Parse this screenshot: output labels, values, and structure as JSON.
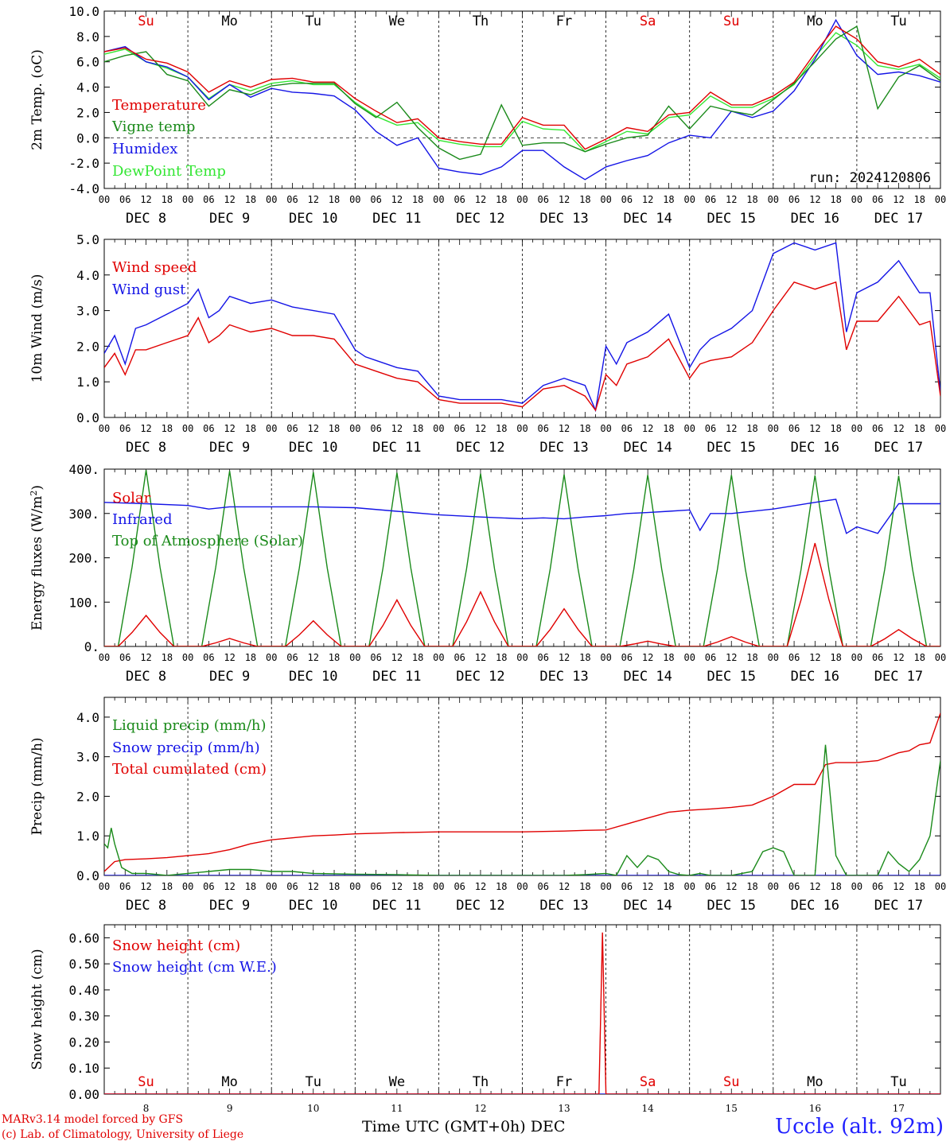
{
  "days": {
    "weekday": [
      "Su",
      "Mo",
      "Tu",
      "We",
      "Th",
      "Fr",
      "Sa",
      "Su",
      "Mo",
      "Tu"
    ],
    "weekday_color": [
      "#e00000",
      "#000000",
      "#000000",
      "#000000",
      "#000000",
      "#000000",
      "#e00000",
      "#e00000",
      "#000000",
      "#000000"
    ],
    "date_labels": [
      "DEC  8",
      "DEC  9",
      "DEC 10",
      "DEC 11",
      "DEC 12",
      "DEC 13",
      "DEC 14",
      "DEC 15",
      "DEC 16",
      "DEC 17"
    ],
    "day_numbers": [
      "8",
      "9",
      "10",
      "11",
      "12",
      "13",
      "14",
      "15",
      "16",
      "17"
    ],
    "hour_ticks": [
      "00",
      "06",
      "12",
      "18"
    ],
    "final_hour": "00"
  },
  "footer": {
    "credit1": "MARv3.14 model forced by GFS",
    "credit2": "(c) Lab. of Climatology, University of Liege",
    "xtitle": "Time UTC (GMT+0h) DEC",
    "station": "Uccle (alt. 92m)"
  },
  "chart_data": [
    {
      "type": "line",
      "ylabel": "2m Temp. (oC)",
      "ylim": [
        -4,
        10
      ],
      "yticks": [
        "-4.0",
        "-2.0",
        "0.0",
        "2.0",
        "4.0",
        "6.0",
        "8.0",
        "10.0"
      ],
      "run_label": "run: 2024120806",
      "zero_line": true,
      "x_unit": "hours since DEC 8 00 UTC",
      "xlim": [
        0,
        240
      ],
      "series": [
        {
          "name": "Temperature",
          "color": "#e00000",
          "x": [
            0,
            6,
            12,
            18,
            24,
            30,
            36,
            42,
            48,
            54,
            60,
            66,
            72,
            78,
            84,
            90,
            96,
            102,
            108,
            114,
            120,
            126,
            132,
            138,
            144,
            150,
            156,
            162,
            168,
            174,
            180,
            186,
            192,
            198,
            204,
            210,
            216,
            222,
            228,
            234,
            240
          ],
          "y": [
            6.8,
            7.1,
            6.2,
            5.9,
            5.2,
            3.6,
            4.5,
            4.0,
            4.6,
            4.7,
            4.4,
            4.4,
            3.1,
            2.1,
            1.2,
            1.5,
            0.0,
            -0.3,
            -0.5,
            -0.5,
            1.6,
            1.0,
            1.0,
            -0.9,
            -0.1,
            0.8,
            0.5,
            1.8,
            2.0,
            3.6,
            2.6,
            2.6,
            3.3,
            4.4,
            6.7,
            8.8,
            7.8,
            6.0,
            5.6,
            6.2,
            5.0
          ]
        },
        {
          "name": "Vigne temp",
          "color": "#1a8a1a",
          "x": [
            0,
            6,
            12,
            18,
            24,
            30,
            36,
            42,
            48,
            54,
            60,
            66,
            72,
            78,
            84,
            90,
            96,
            102,
            108,
            114,
            120,
            126,
            132,
            138,
            144,
            150,
            156,
            162,
            168,
            174,
            180,
            186,
            192,
            198,
            204,
            210,
            216,
            222,
            228,
            234,
            240
          ],
          "y": [
            6.0,
            6.5,
            6.8,
            5.0,
            4.5,
            2.5,
            3.8,
            3.4,
            4.1,
            4.3,
            4.3,
            4.3,
            2.7,
            1.6,
            2.8,
            0.8,
            -0.8,
            -1.7,
            -1.3,
            2.6,
            -0.6,
            -0.4,
            -0.4,
            -1.1,
            -0.5,
            0.0,
            0.2,
            2.5,
            0.7,
            2.5,
            2.1,
            1.8,
            3.0,
            4.3,
            6.0,
            7.8,
            8.8,
            2.3,
            4.8,
            5.7,
            4.5
          ]
        },
        {
          "name": "Humidex",
          "color": "#1414e6",
          "x": [
            0,
            6,
            12,
            18,
            24,
            30,
            36,
            42,
            48,
            54,
            60,
            66,
            72,
            78,
            84,
            90,
            96,
            102,
            108,
            114,
            120,
            126,
            132,
            138,
            144,
            150,
            156,
            162,
            168,
            174,
            180,
            186,
            192,
            198,
            204,
            210,
            216,
            222,
            228,
            234,
            240
          ],
          "y": [
            6.8,
            7.2,
            6.0,
            5.6,
            4.8,
            3.0,
            4.2,
            3.2,
            3.9,
            3.6,
            3.5,
            3.3,
            2.2,
            0.5,
            -0.6,
            0.0,
            -2.4,
            -2.7,
            -2.9,
            -2.3,
            -1.0,
            -1.0,
            -2.3,
            -3.3,
            -2.3,
            -1.8,
            -1.4,
            -0.4,
            0.2,
            0.0,
            2.1,
            1.6,
            2.1,
            3.7,
            6.2,
            9.3,
            6.5,
            5.0,
            5.2,
            4.9,
            4.4
          ]
        },
        {
          "name": "DewPoint Temp",
          "color": "#33e633",
          "x": [
            0,
            6,
            12,
            18,
            24,
            30,
            36,
            42,
            48,
            54,
            60,
            66,
            72,
            78,
            84,
            90,
            96,
            102,
            108,
            114,
            120,
            126,
            132,
            138,
            144,
            150,
            156,
            162,
            168,
            174,
            180,
            186,
            192,
            198,
            204,
            210,
            216,
            222,
            228,
            234,
            240
          ],
          "y": [
            6.6,
            7.0,
            6.0,
            5.5,
            4.8,
            3.1,
            4.2,
            3.7,
            4.3,
            4.5,
            4.2,
            4.2,
            2.8,
            1.7,
            1.0,
            1.2,
            -0.2,
            -0.5,
            -0.7,
            -0.7,
            1.3,
            0.7,
            0.6,
            -1.1,
            -0.3,
            0.5,
            0.3,
            1.6,
            1.8,
            3.3,
            2.4,
            2.4,
            3.1,
            4.2,
            6.4,
            8.3,
            7.3,
            5.7,
            5.4,
            5.8,
            4.7
          ]
        }
      ]
    },
    {
      "type": "line",
      "ylabel": "10m Wind (m/s)",
      "ylim": [
        0,
        5
      ],
      "yticks": [
        "0.0",
        "1.0",
        "2.0",
        "3.0",
        "4.0",
        "5.0"
      ],
      "x_unit": "hours since DEC 8 00 UTC",
      "xlim": [
        0,
        240
      ],
      "series": [
        {
          "name": "Wind speed",
          "color": "#e00000",
          "x": [
            0,
            3,
            6,
            9,
            12,
            18,
            24,
            27,
            30,
            33,
            36,
            42,
            48,
            54,
            60,
            66,
            72,
            75,
            78,
            84,
            90,
            96,
            102,
            108,
            114,
            120,
            126,
            132,
            138,
            141,
            144,
            147,
            150,
            156,
            162,
            168,
            171,
            174,
            180,
            186,
            192,
            198,
            204,
            210,
            213,
            216,
            222,
            228,
            234,
            237,
            240
          ],
          "y": [
            1.4,
            1.8,
            1.2,
            1.9,
            1.9,
            2.1,
            2.3,
            2.8,
            2.1,
            2.3,
            2.6,
            2.4,
            2.5,
            2.3,
            2.3,
            2.2,
            1.5,
            1.4,
            1.3,
            1.1,
            1.0,
            0.5,
            0.4,
            0.4,
            0.4,
            0.3,
            0.8,
            0.9,
            0.6,
            0.2,
            1.2,
            0.9,
            1.5,
            1.7,
            2.2,
            1.1,
            1.5,
            1.6,
            1.7,
            2.1,
            3.0,
            3.8,
            3.6,
            3.8,
            1.9,
            2.7,
            2.7,
            3.4,
            2.6,
            2.7,
            0.6
          ]
        },
        {
          "name": "Wind gust",
          "color": "#1414e6",
          "x": [
            0,
            3,
            6,
            9,
            12,
            18,
            24,
            27,
            30,
            33,
            36,
            42,
            48,
            54,
            60,
            66,
            72,
            75,
            78,
            84,
            90,
            96,
            102,
            108,
            114,
            120,
            126,
            132,
            138,
            141,
            144,
            147,
            150,
            156,
            162,
            168,
            171,
            174,
            180,
            186,
            192,
            198,
            204,
            210,
            213,
            216,
            222,
            228,
            234,
            237,
            240
          ],
          "y": [
            1.8,
            2.3,
            1.5,
            2.5,
            2.6,
            2.9,
            3.2,
            3.6,
            2.8,
            3.0,
            3.4,
            3.2,
            3.3,
            3.1,
            3.0,
            2.9,
            1.9,
            1.7,
            1.6,
            1.4,
            1.3,
            0.6,
            0.5,
            0.5,
            0.5,
            0.4,
            0.9,
            1.1,
            0.9,
            0.2,
            2.0,
            1.5,
            2.1,
            2.4,
            2.9,
            1.4,
            1.9,
            2.2,
            2.5,
            3.0,
            4.6,
            4.9,
            4.7,
            4.9,
            2.4,
            3.5,
            3.8,
            4.4,
            3.5,
            3.5,
            0.7
          ]
        }
      ]
    },
    {
      "type": "line",
      "ylabel": "Energy fluxes (W/m2)",
      "ylim": [
        0,
        400
      ],
      "yticks": [
        "0.",
        "100.",
        "200.",
        "300.",
        "400."
      ],
      "x_unit": "hours since DEC 8 00 UTC",
      "xlim": [
        0,
        240
      ],
      "series": [
        {
          "name": "Solar",
          "color": "#e00000",
          "peaks": [
            70,
            18,
            58,
            105,
            123,
            85,
            12,
            22,
            233,
            38
          ]
        },
        {
          "name": "Infrared",
          "color": "#1414e6",
          "x": [
            0,
            12,
            24,
            30,
            36,
            48,
            60,
            72,
            84,
            96,
            108,
            120,
            126,
            132,
            138,
            144,
            150,
            156,
            162,
            168,
            171,
            174,
            180,
            192,
            204,
            210,
            213,
            216,
            222,
            228,
            234,
            240
          ],
          "y": [
            325,
            322,
            318,
            310,
            315,
            315,
            315,
            313,
            305,
            297,
            292,
            288,
            290,
            288,
            292,
            295,
            300,
            302,
            305,
            308,
            262,
            300,
            300,
            310,
            325,
            332,
            255,
            270,
            255,
            322,
            322,
            322
          ]
        },
        {
          "name": "Top of Atmosphere (Solar)",
          "color": "#1a8a1a",
          "peaks": [
            398,
            396,
            393,
            392,
            390,
            388,
            387,
            387,
            386,
            385
          ]
        }
      ]
    },
    {
      "type": "line",
      "ylabel": "Precip (mm/h)",
      "ylim": [
        0,
        4.5
      ],
      "yticks": [
        "0.0",
        "1.0",
        "2.0",
        "3.0",
        "4.0"
      ],
      "x_unit": "hours since DEC 8 00 UTC",
      "xlim": [
        0,
        240
      ],
      "series": [
        {
          "name": "Liquid precip (mm/h)",
          "color": "#1a8a1a",
          "x": [
            0,
            1,
            2,
            3,
            5,
            8,
            12,
            18,
            24,
            30,
            36,
            42,
            48,
            54,
            60,
            72,
            84,
            96,
            108,
            120,
            132,
            138,
            144,
            147,
            150,
            153,
            156,
            159,
            162,
            165,
            168,
            171,
            174,
            180,
            186,
            189,
            192,
            195,
            198,
            201,
            204,
            207,
            210,
            213,
            216,
            222,
            225,
            228,
            231,
            234,
            237,
            240
          ],
          "y": [
            0.8,
            0.7,
            1.2,
            0.8,
            0.2,
            0.05,
            0.05,
            0.0,
            0.05,
            0.1,
            0.15,
            0.15,
            0.1,
            0.1,
            0.05,
            0.03,
            0.02,
            0.0,
            0.0,
            0.0,
            0.0,
            0.02,
            0.05,
            0.0,
            0.5,
            0.2,
            0.5,
            0.4,
            0.1,
            0.02,
            0.0,
            0.05,
            0.0,
            0.0,
            0.1,
            0.6,
            0.7,
            0.6,
            0.0,
            0.0,
            0.0,
            3.3,
            0.5,
            0.0,
            0.0,
            0.0,
            0.6,
            0.3,
            0.1,
            0.4,
            1.0,
            2.9
          ]
        },
        {
          "name": "Snow precip (mm/h)",
          "color": "#1414e6",
          "x": [
            0,
            240
          ],
          "y": [
            0,
            0
          ]
        },
        {
          "name": "Total cumulated (cm)",
          "color": "#e00000",
          "x": [
            0,
            3,
            6,
            12,
            18,
            24,
            30,
            36,
            42,
            48,
            54,
            60,
            66,
            72,
            84,
            96,
            108,
            120,
            132,
            138,
            144,
            150,
            156,
            162,
            168,
            174,
            180,
            186,
            192,
            198,
            204,
            207,
            210,
            216,
            222,
            228,
            231,
            234,
            237,
            240
          ],
          "y": [
            0.1,
            0.35,
            0.4,
            0.42,
            0.45,
            0.5,
            0.55,
            0.65,
            0.8,
            0.9,
            0.95,
            1.0,
            1.02,
            1.05,
            1.08,
            1.1,
            1.1,
            1.1,
            1.12,
            1.14,
            1.15,
            1.3,
            1.45,
            1.6,
            1.65,
            1.68,
            1.72,
            1.78,
            2.0,
            2.3,
            2.3,
            2.8,
            2.85,
            2.85,
            2.9,
            3.1,
            3.15,
            3.3,
            3.35,
            4.1
          ]
        }
      ]
    },
    {
      "type": "line",
      "ylabel": "Snow height (cm)",
      "ylim": [
        0,
        0.65
      ],
      "yticks": [
        "0.00",
        "0.10",
        "0.20",
        "0.30",
        "0.40",
        "0.50",
        "0.60"
      ],
      "x_unit": "hours since DEC 8 00 UTC",
      "xlim": [
        0,
        240
      ],
      "series": [
        {
          "name": "Snow height (cm)",
          "color": "#e00000",
          "x": [
            0,
            142,
            143,
            144,
            145,
            240
          ],
          "y": [
            0,
            0,
            0.62,
            0.0,
            0,
            0
          ]
        },
        {
          "name": "Snow height (cm W.E.)",
          "color": "#1414e6",
          "x": [
            0,
            240
          ],
          "y": [
            0,
            0
          ]
        }
      ]
    }
  ]
}
